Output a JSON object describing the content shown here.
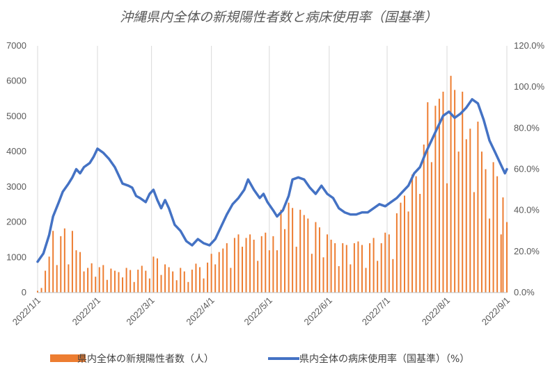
{
  "chart_data": {
    "type": "bar+line",
    "title": "沖縄県内全体の新規陽性者数と病床使用率（国基準）",
    "y_left": {
      "min": 0,
      "max": 7000,
      "ticks": [
        "0",
        "1000",
        "2000",
        "3000",
        "4000",
        "5000",
        "6000",
        "7000"
      ]
    },
    "y_right": {
      "min": 0,
      "max": 1.2,
      "ticks": [
        "0.0%",
        "20.0%",
        "40.0%",
        "60.0%",
        "80.0%",
        "100.0%",
        "120.0%"
      ]
    },
    "x_range": [
      "2022/1/1",
      "2022/9/1"
    ],
    "x_ticks": [
      "2022/1/1",
      "2022/2/1",
      "2022/3/1",
      "2022/4/1",
      "2022/5/1",
      "2022/6/1",
      "2022/7/1",
      "2022/8/1",
      "2022/9/1"
    ],
    "grid": "vertical at month starts",
    "legend_position": "bottom",
    "series": [
      {
        "name": "県内全体の新規陽性者数（人）",
        "kind": "bar",
        "color": "#ED7D31",
        "points": [
          [
            "2022/1/1",
            50
          ],
          [
            "2022/1/3",
            130
          ],
          [
            "2022/1/5",
            620
          ],
          [
            "2022/1/7",
            1020
          ],
          [
            "2022/1/9",
            1750
          ],
          [
            "2022/1/11",
            780
          ],
          [
            "2022/1/13",
            1600
          ],
          [
            "2022/1/15",
            1820
          ],
          [
            "2022/1/17",
            800
          ],
          [
            "2022/1/19",
            1750
          ],
          [
            "2022/1/21",
            1200
          ],
          [
            "2022/1/23",
            1150
          ],
          [
            "2022/1/25",
            600
          ],
          [
            "2022/1/27",
            700
          ],
          [
            "2022/1/29",
            830
          ],
          [
            "2022/1/31",
            450
          ],
          [
            "2022/2/2",
            720
          ],
          [
            "2022/2/4",
            780
          ],
          [
            "2022/2/6",
            360
          ],
          [
            "2022/2/8",
            680
          ],
          [
            "2022/2/10",
            620
          ],
          [
            "2022/2/12",
            580
          ],
          [
            "2022/2/14",
            430
          ],
          [
            "2022/2/16",
            700
          ],
          [
            "2022/2/18",
            640
          ],
          [
            "2022/2/20",
            300
          ],
          [
            "2022/2/22",
            650
          ],
          [
            "2022/2/24",
            760
          ],
          [
            "2022/2/26",
            620
          ],
          [
            "2022/2/28",
            400
          ],
          [
            "2022/3/2",
            1020
          ],
          [
            "2022/3/4",
            970
          ],
          [
            "2022/3/6",
            500
          ],
          [
            "2022/3/8",
            800
          ],
          [
            "2022/3/10",
            720
          ],
          [
            "2022/3/12",
            600
          ],
          [
            "2022/3/14",
            350
          ],
          [
            "2022/3/16",
            700
          ],
          [
            "2022/3/18",
            600
          ],
          [
            "2022/3/20",
            300
          ],
          [
            "2022/3/22",
            650
          ],
          [
            "2022/3/24",
            820
          ],
          [
            "2022/3/26",
            720
          ],
          [
            "2022/3/28",
            400
          ],
          [
            "2022/3/30",
            850
          ],
          [
            "2022/4/1",
            1100
          ],
          [
            "2022/4/3",
            800
          ],
          [
            "2022/4/5",
            1150
          ],
          [
            "2022/4/7",
            1250
          ],
          [
            "2022/4/9",
            1400
          ],
          [
            "2022/4/11",
            700
          ],
          [
            "2022/4/13",
            1550
          ],
          [
            "2022/4/15",
            1650
          ],
          [
            "2022/4/17",
            1300
          ],
          [
            "2022/4/19",
            1550
          ],
          [
            "2022/4/21",
            1650
          ],
          [
            "2022/4/23",
            1500
          ],
          [
            "2022/4/25",
            900
          ],
          [
            "2022/4/27",
            1600
          ],
          [
            "2022/4/29",
            1700
          ],
          [
            "2022/5/1",
            1200
          ],
          [
            "2022/5/3",
            1600
          ],
          [
            "2022/5/5",
            1200
          ],
          [
            "2022/5/7",
            2350
          ],
          [
            "2022/5/9",
            1800
          ],
          [
            "2022/5/11",
            2550
          ],
          [
            "2022/5/13",
            2400
          ],
          [
            "2022/5/15",
            1300
          ],
          [
            "2022/5/17",
            2350
          ],
          [
            "2022/5/19",
            2200
          ],
          [
            "2022/5/21",
            2100
          ],
          [
            "2022/5/23",
            1100
          ],
          [
            "2022/5/25",
            2000
          ],
          [
            "2022/5/27",
            1850
          ],
          [
            "2022/5/29",
            1000
          ],
          [
            "2022/5/31",
            1650
          ],
          [
            "2022/6/2",
            1500
          ],
          [
            "2022/6/4",
            1400
          ],
          [
            "2022/6/6",
            750
          ],
          [
            "2022/6/8",
            1400
          ],
          [
            "2022/6/10",
            1350
          ],
          [
            "2022/6/12",
            800
          ],
          [
            "2022/6/14",
            1400
          ],
          [
            "2022/6/16",
            1450
          ],
          [
            "2022/6/18",
            1350
          ],
          [
            "2022/6/20",
            700
          ],
          [
            "2022/6/22",
            1400
          ],
          [
            "2022/6/24",
            1550
          ],
          [
            "2022/6/26",
            900
          ],
          [
            "2022/6/28",
            1400
          ],
          [
            "2022/6/30",
            1700
          ],
          [
            "2022/7/2",
            1650
          ],
          [
            "2022/7/4",
            950
          ],
          [
            "2022/7/6",
            2250
          ],
          [
            "2022/7/8",
            2550
          ],
          [
            "2022/7/10",
            2750
          ],
          [
            "2022/7/12",
            2300
          ],
          [
            "2022/7/14",
            3350
          ],
          [
            "2022/7/16",
            3300
          ],
          [
            "2022/7/18",
            2800
          ],
          [
            "2022/7/20",
            4200
          ],
          [
            "2022/7/22",
            5400
          ],
          [
            "2022/7/24",
            3700
          ],
          [
            "2022/7/26",
            5300
          ],
          [
            "2022/7/28",
            5500
          ],
          [
            "2022/7/30",
            5700
          ],
          [
            "2022/8/1",
            3100
          ],
          [
            "2022/8/3",
            6150
          ],
          [
            "2022/8/5",
            5750
          ],
          [
            "2022/8/7",
            4000
          ],
          [
            "2022/8/9",
            5700
          ],
          [
            "2022/8/11",
            4350
          ],
          [
            "2022/8/13",
            4650
          ],
          [
            "2022/8/15",
            2850
          ],
          [
            "2022/8/17",
            4850
          ],
          [
            "2022/8/19",
            4000
          ],
          [
            "2022/8/21",
            3500
          ],
          [
            "2022/8/23",
            2100
          ],
          [
            "2022/8/25",
            3700
          ],
          [
            "2022/8/27",
            3300
          ],
          [
            "2022/8/29",
            1650
          ],
          [
            "2022/8/30",
            2700
          ],
          [
            "2022/9/1",
            2000
          ]
        ]
      },
      {
        "name": "県内全体の病床使用率（国基準）（%）",
        "kind": "line",
        "axis": "right",
        "color": "#4472C4",
        "points": [
          [
            "2022/1/1",
            0.15
          ],
          [
            "2022/1/4",
            0.19
          ],
          [
            "2022/1/7",
            0.28
          ],
          [
            "2022/1/9",
            0.37
          ],
          [
            "2022/1/12",
            0.44
          ],
          [
            "2022/1/14",
            0.49
          ],
          [
            "2022/1/17",
            0.53
          ],
          [
            "2022/1/19",
            0.56
          ],
          [
            "2022/1/21",
            0.6
          ],
          [
            "2022/1/23",
            0.58
          ],
          [
            "2022/1/25",
            0.61
          ],
          [
            "2022/1/28",
            0.63
          ],
          [
            "2022/1/30",
            0.66
          ],
          [
            "2022/2/1",
            0.7
          ],
          [
            "2022/2/4",
            0.68
          ],
          [
            "2022/2/7",
            0.65
          ],
          [
            "2022/2/10",
            0.61
          ],
          [
            "2022/2/12",
            0.57
          ],
          [
            "2022/2/14",
            0.53
          ],
          [
            "2022/2/17",
            0.52
          ],
          [
            "2022/2/19",
            0.51
          ],
          [
            "2022/2/21",
            0.47
          ],
          [
            "2022/2/23",
            0.46
          ],
          [
            "2022/2/26",
            0.44
          ],
          [
            "2022/2/28",
            0.48
          ],
          [
            "2022/3/2",
            0.5
          ],
          [
            "2022/3/4",
            0.45
          ],
          [
            "2022/3/6",
            0.41
          ],
          [
            "2022/3/8",
            0.45
          ],
          [
            "2022/3/10",
            0.41
          ],
          [
            "2022/3/13",
            0.33
          ],
          [
            "2022/3/16",
            0.3
          ],
          [
            "2022/3/19",
            0.25
          ],
          [
            "2022/3/22",
            0.23
          ],
          [
            "2022/3/25",
            0.26
          ],
          [
            "2022/3/28",
            0.24
          ],
          [
            "2022/3/31",
            0.23
          ],
          [
            "2022/4/3",
            0.26
          ],
          [
            "2022/4/6",
            0.32
          ],
          [
            "2022/4/9",
            0.38
          ],
          [
            "2022/4/12",
            0.43
          ],
          [
            "2022/4/15",
            0.46
          ],
          [
            "2022/4/18",
            0.5
          ],
          [
            "2022/4/20",
            0.55
          ],
          [
            "2022/4/23",
            0.5
          ],
          [
            "2022/4/26",
            0.46
          ],
          [
            "2022/4/28",
            0.48
          ],
          [
            "2022/4/30",
            0.44
          ],
          [
            "2022/5/3",
            0.4
          ],
          [
            "2022/5/5",
            0.37
          ],
          [
            "2022/5/8",
            0.4
          ],
          [
            "2022/5/11",
            0.47
          ],
          [
            "2022/5/13",
            0.55
          ],
          [
            "2022/5/16",
            0.56
          ],
          [
            "2022/5/19",
            0.55
          ],
          [
            "2022/5/22",
            0.51
          ],
          [
            "2022/5/25",
            0.48
          ],
          [
            "2022/5/28",
            0.52
          ],
          [
            "2022/5/31",
            0.48
          ],
          [
            "2022/6/3",
            0.46
          ],
          [
            "2022/6/6",
            0.41
          ],
          [
            "2022/6/9",
            0.39
          ],
          [
            "2022/6/12",
            0.38
          ],
          [
            "2022/6/15",
            0.38
          ],
          [
            "2022/6/18",
            0.39
          ],
          [
            "2022/6/21",
            0.39
          ],
          [
            "2022/6/24",
            0.41
          ],
          [
            "2022/6/27",
            0.43
          ],
          [
            "2022/6/30",
            0.42
          ],
          [
            "2022/7/3",
            0.44
          ],
          [
            "2022/7/6",
            0.46
          ],
          [
            "2022/7/9",
            0.49
          ],
          [
            "2022/7/12",
            0.52
          ],
          [
            "2022/7/15",
            0.58
          ],
          [
            "2022/7/18",
            0.61
          ],
          [
            "2022/7/21",
            0.68
          ],
          [
            "2022/7/24",
            0.74
          ],
          [
            "2022/7/27",
            0.8
          ],
          [
            "2022/7/30",
            0.86
          ],
          [
            "2022/8/2",
            0.88
          ],
          [
            "2022/8/5",
            0.85
          ],
          [
            "2022/8/8",
            0.87
          ],
          [
            "2022/8/11",
            0.9
          ],
          [
            "2022/8/14",
            0.94
          ],
          [
            "2022/8/17",
            0.92
          ],
          [
            "2022/8/20",
            0.84
          ],
          [
            "2022/8/23",
            0.74
          ],
          [
            "2022/8/26",
            0.68
          ],
          [
            "2022/8/29",
            0.62
          ],
          [
            "2022/8/31",
            0.58
          ],
          [
            "2022/9/1",
            0.6
          ]
        ]
      }
    ]
  }
}
